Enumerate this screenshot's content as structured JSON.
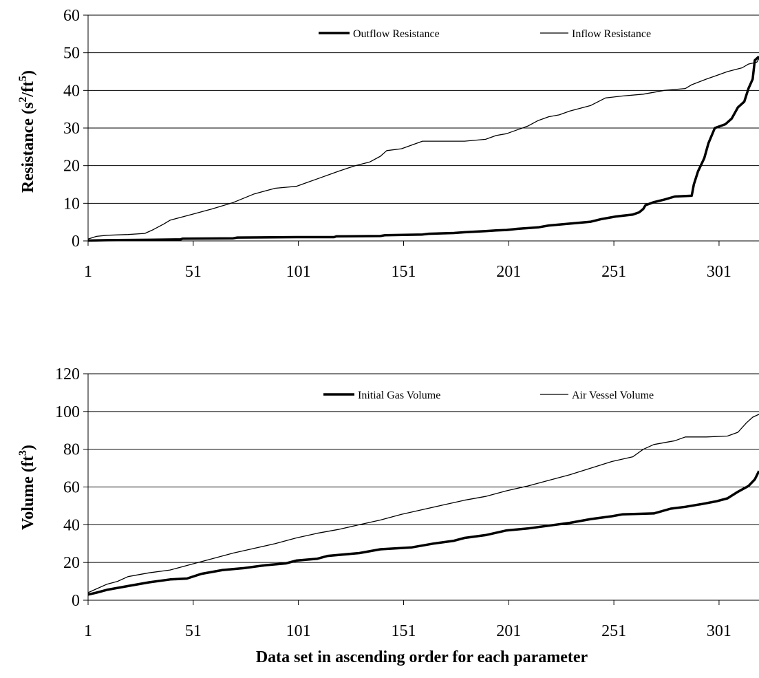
{
  "chart_data": [
    {
      "type": "line",
      "ylabel_main": "Resistance (s",
      "ylabel_sup1": "2",
      "ylabel_mid": "/ft",
      "ylabel_sup2": "5",
      "ylabel_end": ")",
      "xlabel": "",
      "x_ticks": [
        "1",
        "51",
        "101",
        "151",
        "201",
        "251",
        "301"
      ],
      "y_ticks": [
        "0",
        "10",
        "20",
        "30",
        "40",
        "50",
        "60"
      ],
      "xlim": [
        1,
        320
      ],
      "ylim": [
        0,
        60
      ],
      "grid": "horizontal",
      "legend": "top",
      "series": [
        {
          "name": "Outflow Resistance",
          "style": "thick",
          "points": [
            [
              1,
              0.1
            ],
            [
              10,
              0.2
            ],
            [
              30,
              0.3
            ],
            [
              45,
              0.4
            ],
            [
              46,
              0.6
            ],
            [
              70,
              0.7
            ],
            [
              72,
              0.9
            ],
            [
              100,
              1.0
            ],
            [
              118,
              1.0
            ],
            [
              119,
              1.2
            ],
            [
              140,
              1.3
            ],
            [
              142,
              1.5
            ],
            [
              160,
              1.7
            ],
            [
              163,
              1.9
            ],
            [
              175,
              2.1
            ],
            [
              180,
              2.3
            ],
            [
              190,
              2.6
            ],
            [
              195,
              2.8
            ],
            [
              200,
              2.9
            ],
            [
              205,
              3.2
            ],
            [
              215,
              3.6
            ],
            [
              220,
              4.1
            ],
            [
              230,
              4.6
            ],
            [
              240,
              5.1
            ],
            [
              245,
              5.8
            ],
            [
              252,
              6.5
            ],
            [
              260,
              7.0
            ],
            [
              263,
              7.6
            ],
            [
              265,
              8.5
            ],
            [
              266,
              9.5
            ],
            [
              270,
              10.3
            ],
            [
              275,
              11.0
            ],
            [
              280,
              11.8
            ],
            [
              288,
              12.0
            ],
            [
              289,
              15.0
            ],
            [
              291,
              18.5
            ],
            [
              294,
              22.0
            ],
            [
              296,
              26.0
            ],
            [
              299,
              30.0
            ],
            [
              304,
              31.0
            ],
            [
              307,
              32.5
            ],
            [
              310,
              35.5
            ],
            [
              313,
              37.0
            ],
            [
              315,
              40.5
            ],
            [
              317,
              43.0
            ],
            [
              318,
              48.0
            ],
            [
              320,
              49.0
            ]
          ]
        },
        {
          "name": "Inflow Resistance",
          "style": "thin",
          "points": [
            [
              1,
              0.5
            ],
            [
              5,
              1.2
            ],
            [
              10,
              1.5
            ],
            [
              20,
              1.7
            ],
            [
              28,
              2.0
            ],
            [
              32,
              3.0
            ],
            [
              37,
              4.5
            ],
            [
              40,
              5.5
            ],
            [
              50,
              7.0
            ],
            [
              60,
              8.5
            ],
            [
              70,
              10.2
            ],
            [
              80,
              12.5
            ],
            [
              90,
              14.0
            ],
            [
              100,
              14.5
            ],
            [
              105,
              15.5
            ],
            [
              110,
              16.5
            ],
            [
              120,
              18.5
            ],
            [
              128,
              20.0
            ],
            [
              135,
              21.0
            ],
            [
              140,
              22.5
            ],
            [
              143,
              24.0
            ],
            [
              150,
              24.5
            ],
            [
              155,
              25.5
            ],
            [
              160,
              26.5
            ],
            [
              170,
              26.5
            ],
            [
              180,
              26.5
            ],
            [
              190,
              27.0
            ],
            [
              195,
              28.0
            ],
            [
              200,
              28.5
            ],
            [
              205,
              29.5
            ],
            [
              210,
              30.5
            ],
            [
              215,
              32.0
            ],
            [
              220,
              33.0
            ],
            [
              225,
              33.5
            ],
            [
              230,
              34.5
            ],
            [
              240,
              36.0
            ],
            [
              247,
              38.0
            ],
            [
              255,
              38.5
            ],
            [
              265,
              39.0
            ],
            [
              275,
              40.0
            ],
            [
              285,
              40.5
            ],
            [
              288,
              41.5
            ],
            [
              295,
              43.0
            ],
            [
              300,
              44.0
            ],
            [
              305,
              45.0
            ],
            [
              312,
              46.0
            ],
            [
              315,
              47.0
            ],
            [
              319,
              47.5
            ],
            [
              320,
              48.5
            ]
          ]
        }
      ]
    },
    {
      "type": "line",
      "ylabel_main": "Volume (ft",
      "ylabel_sup1": "3",
      "ylabel_end": ")",
      "xlabel": "Data set in ascending order for each parameter",
      "x_ticks": [
        "1",
        "51",
        "101",
        "151",
        "201",
        "251",
        "301"
      ],
      "y_ticks": [
        "0",
        "20",
        "40",
        "60",
        "80",
        "100",
        "120"
      ],
      "xlim": [
        1,
        320
      ],
      "ylim": [
        0,
        120
      ],
      "grid": "horizontal",
      "legend": "top",
      "series": [
        {
          "name": "Initial Gas Volume",
          "style": "thick",
          "points": [
            [
              1,
              3.0
            ],
            [
              5,
              4.0
            ],
            [
              10,
              5.5
            ],
            [
              20,
              7.5
            ],
            [
              30,
              9.5
            ],
            [
              40,
              11.0
            ],
            [
              48,
              11.5
            ],
            [
              55,
              14.0
            ],
            [
              65,
              16.0
            ],
            [
              75,
              17.0
            ],
            [
              85,
              18.5
            ],
            [
              95,
              19.5
            ],
            [
              100,
              21.0
            ],
            [
              110,
              22.0
            ],
            [
              115,
              23.5
            ],
            [
              130,
              25.0
            ],
            [
              140,
              27.0
            ],
            [
              155,
              28.0
            ],
            [
              165,
              30.0
            ],
            [
              175,
              31.5
            ],
            [
              180,
              33.0
            ],
            [
              190,
              34.5
            ],
            [
              200,
              37.0
            ],
            [
              210,
              38.0
            ],
            [
              220,
              39.5
            ],
            [
              230,
              41.0
            ],
            [
              240,
              43.0
            ],
            [
              250,
              44.5
            ],
            [
              255,
              45.5
            ],
            [
              270,
              46.0
            ],
            [
              278,
              48.5
            ],
            [
              285,
              49.5
            ],
            [
              293,
              51.0
            ],
            [
              300,
              52.5
            ],
            [
              305,
              54.0
            ],
            [
              310,
              57.5
            ],
            [
              315,
              60.5
            ],
            [
              318,
              64.0
            ],
            [
              320,
              68.5
            ]
          ]
        },
        {
          "name": "Air Vessel Volume",
          "style": "thin",
          "points": [
            [
              1,
              4.0
            ],
            [
              5,
              6.0
            ],
            [
              10,
              8.5
            ],
            [
              15,
              10.0
            ],
            [
              20,
              12.5
            ],
            [
              30,
              14.5
            ],
            [
              40,
              16.0
            ],
            [
              50,
              19.0
            ],
            [
              60,
              22.0
            ],
            [
              70,
              25.0
            ],
            [
              80,
              27.5
            ],
            [
              90,
              30.0
            ],
            [
              100,
              33.0
            ],
            [
              110,
              35.5
            ],
            [
              120,
              37.5
            ],
            [
              130,
              40.0
            ],
            [
              140,
              42.5
            ],
            [
              150,
              45.5
            ],
            [
              160,
              48.0
            ],
            [
              170,
              50.5
            ],
            [
              180,
              53.0
            ],
            [
              190,
              55.0
            ],
            [
              200,
              58.0
            ],
            [
              210,
              60.5
            ],
            [
              220,
              63.5
            ],
            [
              230,
              66.5
            ],
            [
              240,
              70.0
            ],
            [
              250,
              73.5
            ],
            [
              260,
              76.0
            ],
            [
              265,
              80.0
            ],
            [
              270,
              82.5
            ],
            [
              280,
              84.5
            ],
            [
              285,
              86.5
            ],
            [
              295,
              86.5
            ],
            [
              305,
              87.0
            ],
            [
              310,
              89.0
            ],
            [
              314,
              94.0
            ],
            [
              317,
              97.0
            ],
            [
              320,
              98.5
            ]
          ]
        }
      ]
    }
  ]
}
